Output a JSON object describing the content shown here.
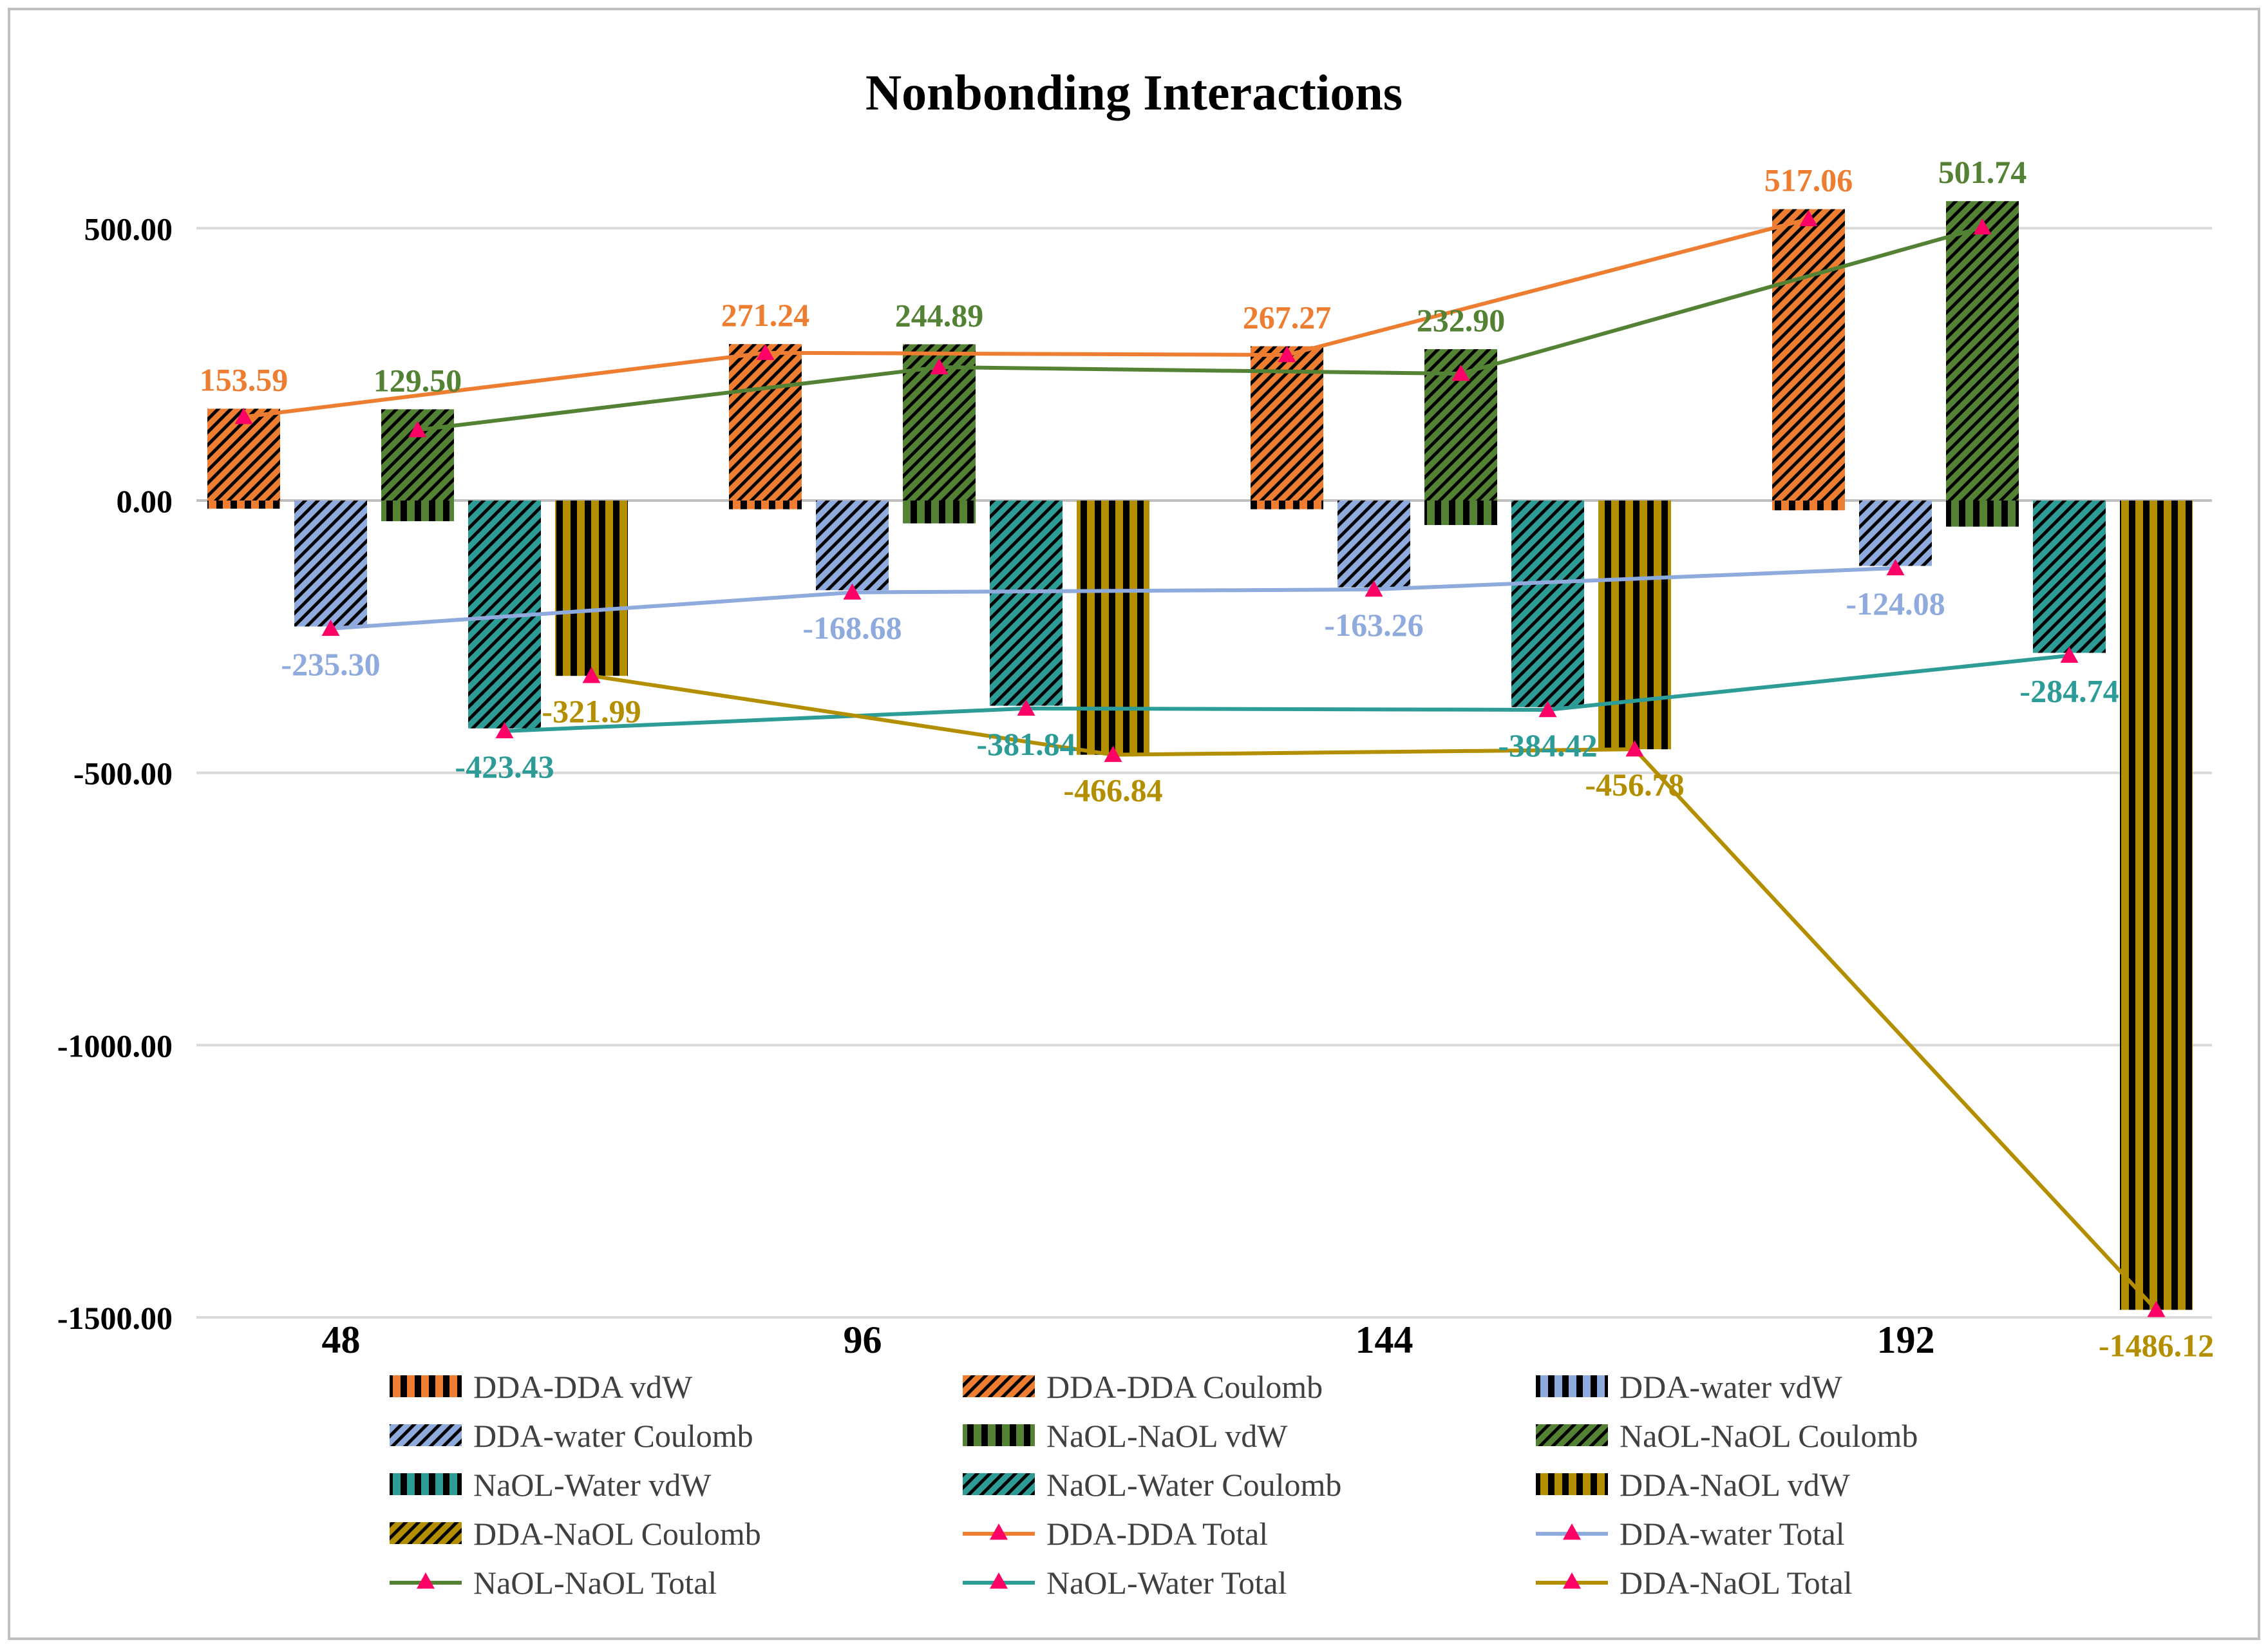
{
  "chart_data": {
    "type": "bar",
    "title": "Nonbonding Interactions",
    "xlabel": "",
    "ylabel": "",
    "ylim": [
      -1500,
      500
    ],
    "y_ticks": [
      500,
      0,
      -500,
      -1000,
      -1500
    ],
    "y_tick_labels": [
      "500.00",
      "0.00",
      "-500.00",
      "-1000.00",
      "-1500.00"
    ],
    "grid": true,
    "legend_position": "bottom",
    "categories": [
      "48",
      "96",
      "144",
      "192"
    ],
    "colors": {
      "dda_dda": "#ed7d31",
      "dda_water": "#8faadc",
      "naol_naol": "#548235",
      "naol_water": "#2e9c96",
      "dda_naol": "#b38f00",
      "marker": "#ff0066",
      "grid": "#d9d9d9",
      "border": "#bfbfbf"
    },
    "groups": [
      {
        "key": "dda_dda",
        "vdw": [
          -15,
          -16,
          -16,
          -18
        ],
        "coulomb": [
          168.59,
          287.24,
          283.27,
          535.06
        ],
        "total": [
          153.59,
          271.24,
          267.27,
          517.06
        ],
        "labels": [
          "153.59",
          "271.24",
          "267.27",
          "517.06"
        ]
      },
      {
        "key": "dda_water",
        "vdw": [
          -4,
          -4,
          -4,
          -4
        ],
        "coulomb": [
          -231.3,
          -164.68,
          -159.26,
          -120.08
        ],
        "total": [
          -235.3,
          -168.68,
          -163.26,
          -124.08
        ],
        "labels": [
          "-235.30",
          "-168.68",
          "-163.26",
          "-124.08"
        ]
      },
      {
        "key": "naol_naol",
        "vdw": [
          -38,
          -42,
          -45,
          -48
        ],
        "coulomb": [
          167.5,
          286.89,
          277.9,
          549.74
        ],
        "total": [
          129.5,
          244.89,
          232.9,
          501.74
        ],
        "labels": [
          "129.50",
          "244.89",
          "232.90",
          "501.74"
        ]
      },
      {
        "key": "naol_water",
        "vdw": [
          -5,
          -5,
          -5,
          -5
        ],
        "coulomb": [
          -418.43,
          -376.84,
          -379.42,
          -279.74
        ],
        "total": [
          -423.43,
          -381.84,
          -384.42,
          -284.74
        ],
        "labels": [
          "-423.43",
          "-381.84",
          "-384.42",
          "-284.74"
        ]
      },
      {
        "key": "dda_naol",
        "vdw": [
          -321.99,
          -466.84,
          -456.78,
          -1486.12
        ],
        "coulomb": [
          0,
          0,
          0,
          0
        ],
        "total": [
          -321.99,
          -466.84,
          -456.78,
          -1486.12
        ],
        "labels": [
          "-321.99",
          "-466.84",
          "-456.78",
          "-1486.12"
        ]
      }
    ],
    "legend": [
      {
        "label": "DDA-DDA vdW",
        "group": "dda_dda",
        "kind": "vdw"
      },
      {
        "label": "DDA-DDA Coulomb",
        "group": "dda_dda",
        "kind": "coulomb"
      },
      {
        "label": "DDA-water vdW",
        "group": "dda_water",
        "kind": "vdw"
      },
      {
        "label": "DDA-water Coulomb",
        "group": "dda_water",
        "kind": "coulomb"
      },
      {
        "label": "NaOL-NaOL vdW",
        "group": "naol_naol",
        "kind": "vdw"
      },
      {
        "label": "NaOL-NaOL Coulomb",
        "group": "naol_naol",
        "kind": "coulomb"
      },
      {
        "label": "NaOL-Water vdW",
        "group": "naol_water",
        "kind": "vdw"
      },
      {
        "label": "NaOL-Water Coulomb",
        "group": "naol_water",
        "kind": "coulomb"
      },
      {
        "label": "DDA-NaOL vdW",
        "group": "dda_naol",
        "kind": "vdw"
      },
      {
        "label": "DDA-NaOL Coulomb",
        "group": "dda_naol",
        "kind": "coulomb"
      },
      {
        "label": "DDA-DDA Total",
        "group": "dda_dda",
        "kind": "total"
      },
      {
        "label": "DDA-water Total",
        "group": "dda_water",
        "kind": "total"
      },
      {
        "label": "NaOL-NaOL Total",
        "group": "naol_naol",
        "kind": "total"
      },
      {
        "label": "NaOL-Water Total",
        "group": "naol_water",
        "kind": "total"
      },
      {
        "label": "DDA-NaOL Total",
        "group": "dda_naol",
        "kind": "total"
      }
    ]
  }
}
